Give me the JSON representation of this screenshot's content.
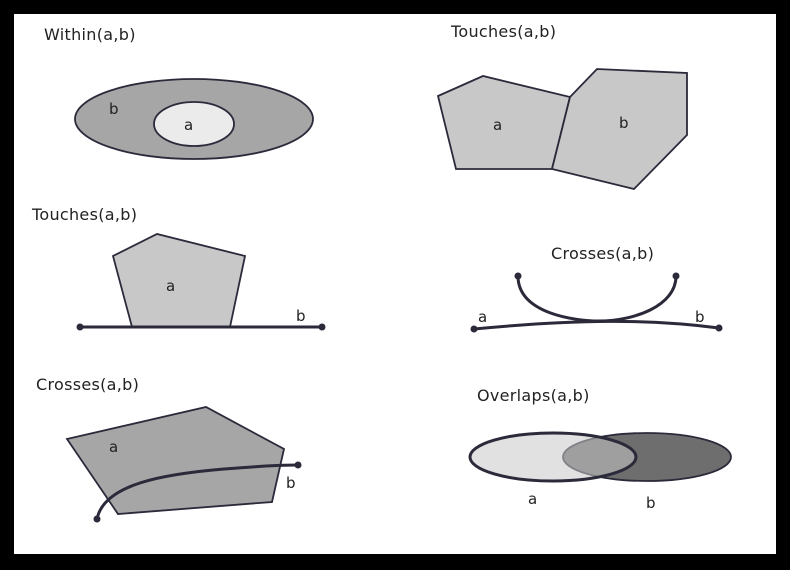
{
  "colors": {
    "frame": "#000000",
    "background": "#ffffff",
    "fill_light": "#c8c8c8",
    "fill_mid": "#a6a6a6",
    "fill_dark": "#6e6e6e",
    "fill_inner": "#ebebeb",
    "stroke": "#2a2a3a"
  },
  "panels": {
    "within": {
      "title": "Within(a,b)",
      "label_a": "a",
      "label_b": "b"
    },
    "touches_polygons": {
      "title": "Touches(a,b)",
      "label_a": "a",
      "label_b": "b"
    },
    "touches_line": {
      "title": "Touches(a,b)",
      "label_a": "a",
      "label_b": "b"
    },
    "crosses_lines": {
      "title": "Crosses(a,b)",
      "label_a": "a",
      "label_b": "b"
    },
    "crosses_polygon": {
      "title": "Crosses(a,b)",
      "label_a": "a",
      "label_b": "b"
    },
    "overlaps": {
      "title": "Overlaps(a,b)",
      "label_a": "a",
      "label_b": "b"
    }
  }
}
